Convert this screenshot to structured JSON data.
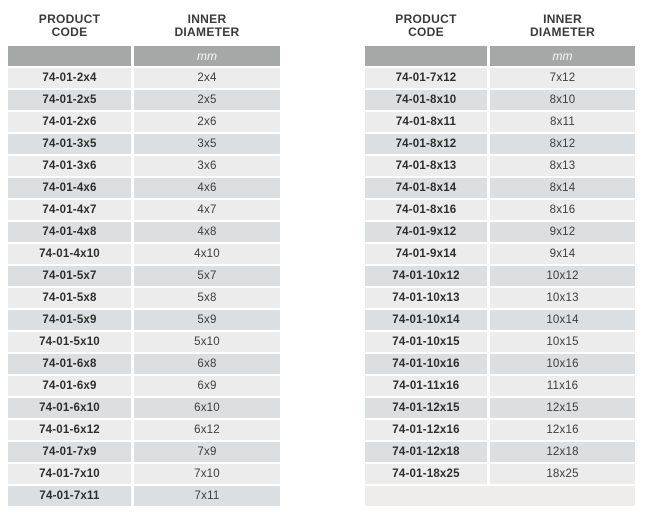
{
  "colors": {
    "page_background": "#ffffff",
    "row_light": "#ebeceb",
    "row_dark": "#dcdfe1",
    "unit_bar": "#a6a7a7",
    "unit_text": "#f6f6f6",
    "header_text": "#3a3a3a",
    "code_text": "#2d2d2d",
    "value_text": "#3d3d3d",
    "filler_row": "#efedeb"
  },
  "tables": [
    {
      "id": "left",
      "col1_header": [
        "PRODUCT",
        "CODE"
      ],
      "col2_header": [
        "INNER",
        "DIAMETER"
      ],
      "unit": "mm",
      "has_filler_row": false,
      "rows": [
        [
          "74-01-2x4",
          "2x4"
        ],
        [
          "74-01-2x5",
          "2x5"
        ],
        [
          "74-01-2x6",
          "2x6"
        ],
        [
          "74-01-3x5",
          "3x5"
        ],
        [
          "74-01-3x6",
          "3x6"
        ],
        [
          "74-01-4x6",
          "4x6"
        ],
        [
          "74-01-4x7",
          "4x7"
        ],
        [
          "74-01-4x8",
          "4x8"
        ],
        [
          "74-01-4x10",
          "4x10"
        ],
        [
          "74-01-5x7",
          "5x7"
        ],
        [
          "74-01-5x8",
          "5x8"
        ],
        [
          "74-01-5x9",
          "5x9"
        ],
        [
          "74-01-5x10",
          "5x10"
        ],
        [
          "74-01-6x8",
          "6x8"
        ],
        [
          "74-01-6x9",
          "6x9"
        ],
        [
          "74-01-6x10",
          "6x10"
        ],
        [
          "74-01-6x12",
          "6x12"
        ],
        [
          "74-01-7x9",
          "7x9"
        ],
        [
          "74-01-7x10",
          "7x10"
        ],
        [
          "74-01-7x11",
          "7x11"
        ]
      ]
    },
    {
      "id": "right",
      "col1_header": [
        "PRODUCT",
        "CODE"
      ],
      "col2_header": [
        "INNER",
        "DIAMETER"
      ],
      "unit": "mm",
      "has_filler_row": true,
      "rows": [
        [
          "74-01-7x12",
          "7x12"
        ],
        [
          "74-01-8x10",
          "8x10"
        ],
        [
          "74-01-8x11",
          "8x11"
        ],
        [
          "74-01-8x12",
          "8x12"
        ],
        [
          "74-01-8x13",
          "8x13"
        ],
        [
          "74-01-8x14",
          "8x14"
        ],
        [
          "74-01-8x16",
          "8x16"
        ],
        [
          "74-01-9x12",
          "9x12"
        ],
        [
          "74-01-9x14",
          "9x14"
        ],
        [
          "74-01-10x12",
          "10x12"
        ],
        [
          "74-01-10x13",
          "10x13"
        ],
        [
          "74-01-10x14",
          "10x14"
        ],
        [
          "74-01-10x15",
          "10x15"
        ],
        [
          "74-01-10x16",
          "10x16"
        ],
        [
          "74-01-11x16",
          "11x16"
        ],
        [
          "74-01-12x15",
          "12x15"
        ],
        [
          "74-01-12x16",
          "12x16"
        ],
        [
          "74-01-12x18",
          "12x18"
        ],
        [
          "74-01-18x25",
          "18x25"
        ]
      ]
    }
  ]
}
